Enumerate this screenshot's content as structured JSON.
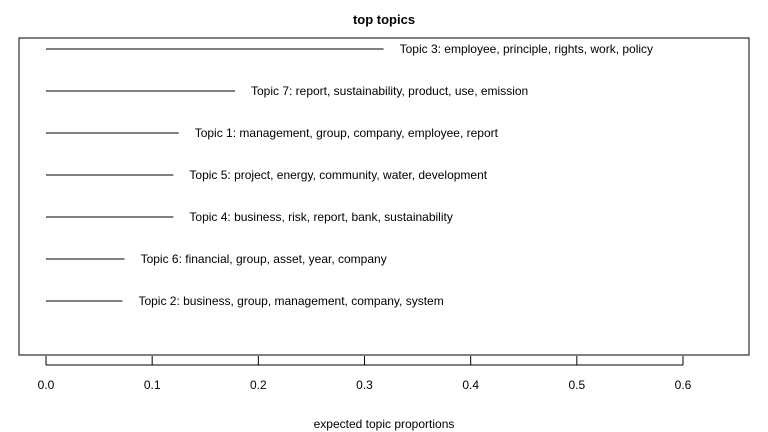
{
  "chart_data": {
    "type": "bar",
    "orientation": "horizontal",
    "title": "top topics",
    "xlabel": "expected topic proportions",
    "ylabel": "",
    "xlim": [
      0,
      0.6
    ],
    "xticks": [
      0.0,
      0.1,
      0.2,
      0.3,
      0.4,
      0.5,
      0.6
    ],
    "xtick_labels": [
      "0.0",
      "0.1",
      "0.2",
      "0.3",
      "0.4",
      "0.5",
      "0.6"
    ],
    "grid": false,
    "legend": "none",
    "bars": [
      {
        "label": "Topic 3: employee, principle, rights, work, policy",
        "value": 0.318
      },
      {
        "label": "Topic 7: report, sustainability, product, use, emission",
        "value": 0.178
      },
      {
        "label": "Topic 1: management, group, company, employee, report",
        "value": 0.125
      },
      {
        "label": "Topic 5: project, energy, community, water, development",
        "value": 0.12
      },
      {
        "label": "Topic 4: business, risk, report, bank, sustainability",
        "value": 0.12
      },
      {
        "label": "Topic 6: financial, group, asset, year, company",
        "value": 0.074
      },
      {
        "label": "Topic 2: business, group, management, company, system",
        "value": 0.072
      }
    ]
  }
}
